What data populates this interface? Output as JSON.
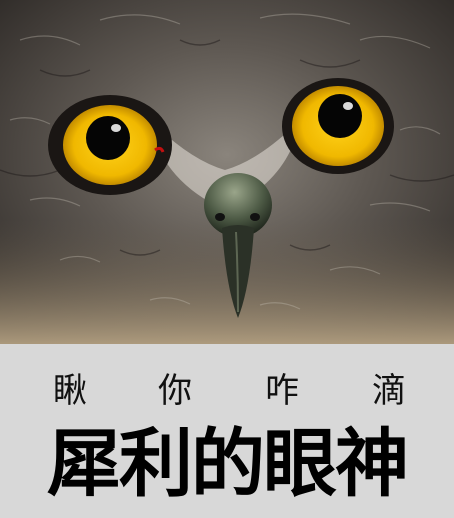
{
  "caption": {
    "line1": [
      "瞅",
      "你",
      "咋",
      "滴"
    ],
    "line2": "犀利的眼神"
  },
  "colors": {
    "caption_background": "#d8d8d8",
    "iris": "#f2c400",
    "pupil": "#050505",
    "feathers": "#5a5550"
  },
  "image": {
    "subject_icon": "owl-face"
  }
}
